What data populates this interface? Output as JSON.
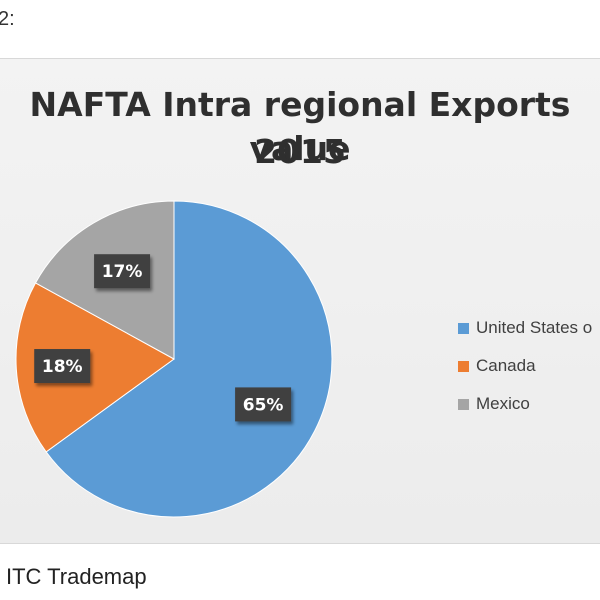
{
  "page": {
    "top_text": "2:",
    "source": "ITC Trademap"
  },
  "chart_data": {
    "type": "pie",
    "title_lines": [
      "NAFTA Intra regional Exports value",
      "2015"
    ],
    "categories": [
      "United States o",
      "Canada",
      "Mexico"
    ],
    "values": [
      65,
      18,
      17
    ],
    "data_labels": [
      "65%",
      "18%",
      "17%"
    ],
    "colors": [
      "#5b9bd5",
      "#ed7d31",
      "#a5a5a5"
    ],
    "legend_position": "right",
    "start_angle": "12 o'clock, clockwise"
  }
}
